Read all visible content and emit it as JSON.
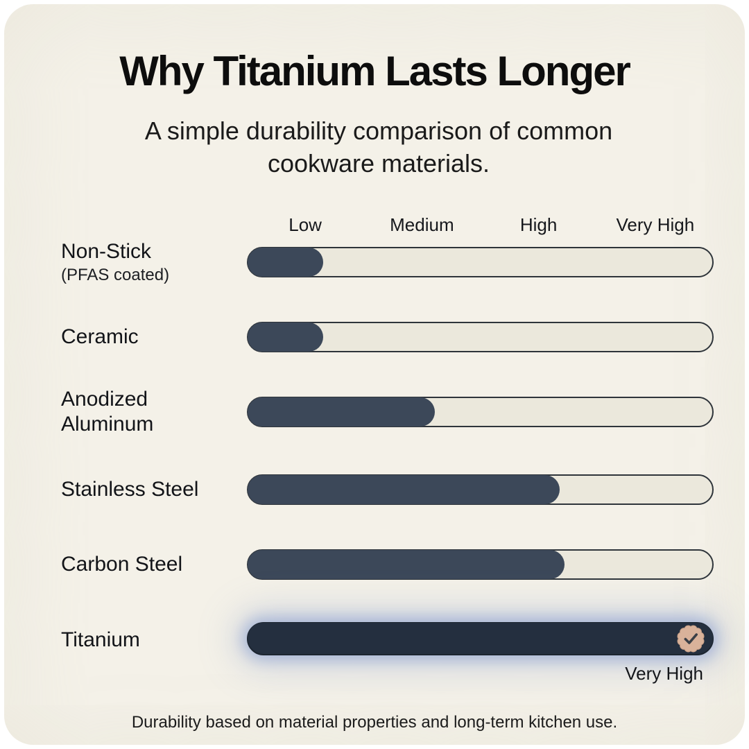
{
  "title": "Why Titanium Lasts Longer",
  "subtitle": "A simple durability comparison of common cookware materials.",
  "footer": "Durability based on material properties and long-term kitchen use.",
  "colors": {
    "card_background": "#f4f1e8",
    "track_background": "#ebe8dc",
    "track_border": "#2e343a",
    "bar_fill": "#3c4859",
    "highlight_bar_fill": "#242f3f",
    "highlight_glow": "#7e96cd",
    "badge_background": "#d9b29a",
    "badge_check": "#3a3f46",
    "text": "#121212"
  },
  "chart_data": {
    "type": "bar",
    "orientation": "horizontal",
    "title": "Why Titanium Lasts Longer",
    "subtitle": "A simple durability comparison of common cookware materials.",
    "xlabel": "",
    "ylabel": "",
    "xlim": [
      0,
      100
    ],
    "grid": false,
    "scale_labels": [
      "Low",
      "Medium",
      "High",
      "Very High"
    ],
    "rows": [
      {
        "label": "Non-Stick",
        "sublabel": "(PFAS coated)",
        "value_pct": 16
      },
      {
        "label": "Ceramic",
        "value_pct": 16
      },
      {
        "label": "Anodized\nAluminum",
        "value_pct": 40
      },
      {
        "label": "Stainless Steel",
        "value_pct": 67
      },
      {
        "label": "Carbon Steel",
        "value_pct": 68
      },
      {
        "label": "Titanium",
        "value_pct": 100,
        "highlight": true,
        "badge": "check-seal-icon",
        "caption": "Very High"
      }
    ]
  }
}
